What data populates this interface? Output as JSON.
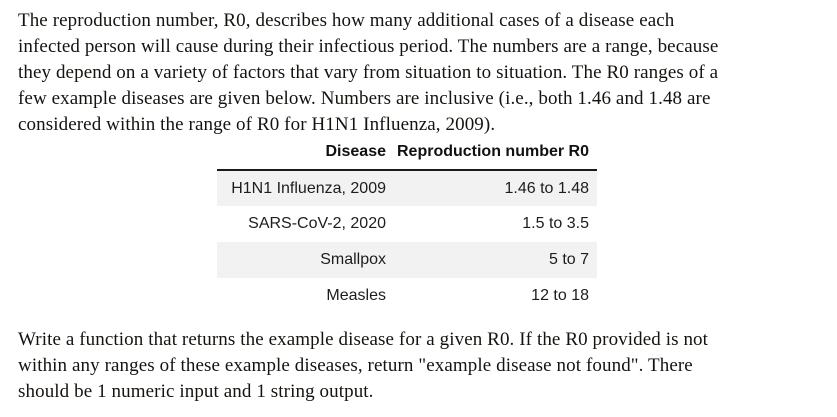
{
  "intro": {
    "lines": [
      "The reproduction number, R0, describes how many additional cases of a disease each",
      "infected person will cause during their infectious period. The numbers are a range, because",
      "they depend on a variety of factors that vary from situation to situation. The R0 ranges of a",
      "few example diseases are given below. Numbers are inclusive (i.e., both 1.46 and 1.48 are",
      "considered within the range of R0 for H1N1 Influenza, 2009)."
    ]
  },
  "table": {
    "headers": {
      "disease": "Disease",
      "r0": "Reproduction number R0"
    },
    "rows": [
      {
        "disease": "H1N1 Influenza, 2009",
        "r0": "1.46 to 1.48"
      },
      {
        "disease": "SARS-CoV-2, 2020",
        "r0": "1.5 to 3.5"
      },
      {
        "disease": "Smallpox",
        "r0": "5 to 7"
      },
      {
        "disease": "Measles",
        "r0": "12 to 18"
      }
    ],
    "stripe_color": "#f2f2f2",
    "rule_color": "#1a1a1a"
  },
  "task": {
    "lines": [
      "Write a function that returns the example disease for a given R0. If the R0 provided is not",
      "within any ranges of these example diseases, return \"example disease not found\". There",
      "should be 1 numeric input and 1 string output."
    ]
  }
}
